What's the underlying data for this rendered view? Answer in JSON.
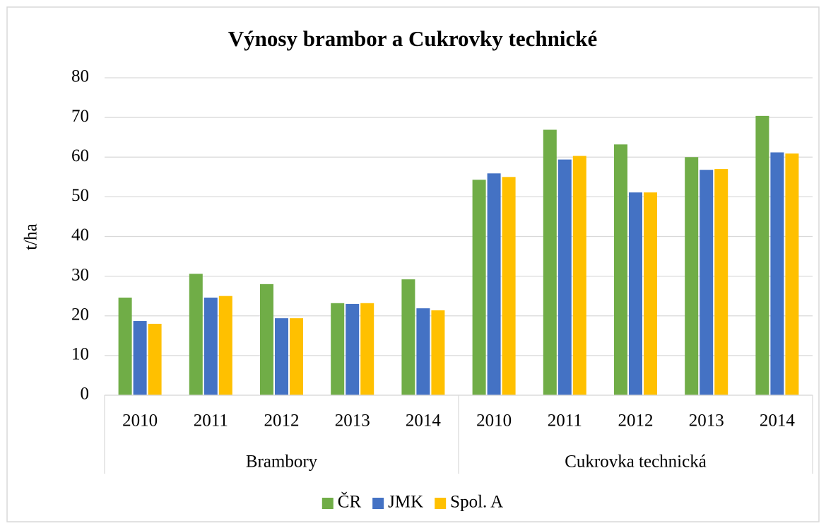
{
  "chart_data": {
    "type": "bar",
    "title": "Výnosy brambor a Cukrovky technické",
    "y_label": "t/ha",
    "categories": [
      "2010",
      "2011",
      "2012",
      "2013",
      "2014",
      "2010",
      "2011",
      "2012",
      "2013",
      "2014"
    ],
    "category_groups": [
      "Brambory",
      "Cukrovka technická"
    ],
    "series": [
      {
        "name": "ČR",
        "color": "#70ad47",
        "values": [
          24.6,
          30.6,
          28.0,
          23.2,
          29.2,
          54.3,
          66.9,
          63.2,
          60.0,
          70.4
        ]
      },
      {
        "name": "JMK",
        "color": "#4472c4",
        "values": [
          18.7,
          24.6,
          19.4,
          23.0,
          21.9,
          55.9,
          59.4,
          51.1,
          56.8,
          61.2
        ]
      },
      {
        "name": "Spol. A",
        "color": "#ffc000",
        "values": [
          18.0,
          25.0,
          19.4,
          23.2,
          21.4,
          55.0,
          60.3,
          51.1,
          57.0,
          60.9
        ]
      }
    ],
    "ylim": [
      0,
      80
    ],
    "yticks": [
      0,
      10,
      20,
      30,
      40,
      50,
      60,
      70,
      80
    ],
    "grid": true,
    "legend": "bottom"
  }
}
